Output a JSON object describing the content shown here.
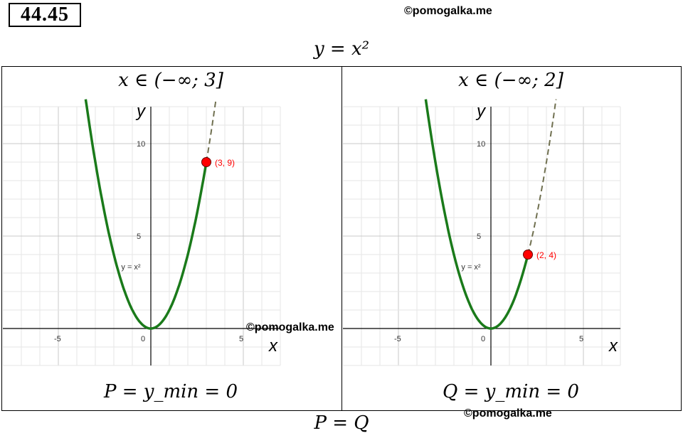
{
  "task_number": "44.45",
  "watermark": "©pomogalka.me",
  "main_function": "y = x²",
  "conclusion": "P = Q",
  "panels": [
    {
      "domain_label": "x ∈ (−∞; 3]",
      "endpoint": {
        "x": 3,
        "y": 9,
        "label": "(3, 9)"
      },
      "result_label": "P = y_min = 0"
    },
    {
      "domain_label": "x ∈ (−∞; 2]",
      "endpoint": {
        "x": 2,
        "y": 4,
        "label": "(2, 4)"
      },
      "result_label": "Q = y_min = 0"
    }
  ],
  "graph": {
    "curve_label": "y = x²",
    "x_axis_label": "x",
    "y_axis_label": "y",
    "x_ticks": [
      "-5",
      "0",
      "5"
    ],
    "y_ticks": [
      "5",
      "10"
    ],
    "x_range": [
      -8,
      7
    ],
    "y_range": [
      -2,
      12
    ]
  },
  "colors": {
    "solid_curve": "#1a7a1a",
    "dashed_curve": "#707050",
    "point_fill": "#ff0000",
    "point_label": "#ff0000",
    "grid_minor": "#e6e6e6",
    "grid_major": "#c8c8c8"
  }
}
